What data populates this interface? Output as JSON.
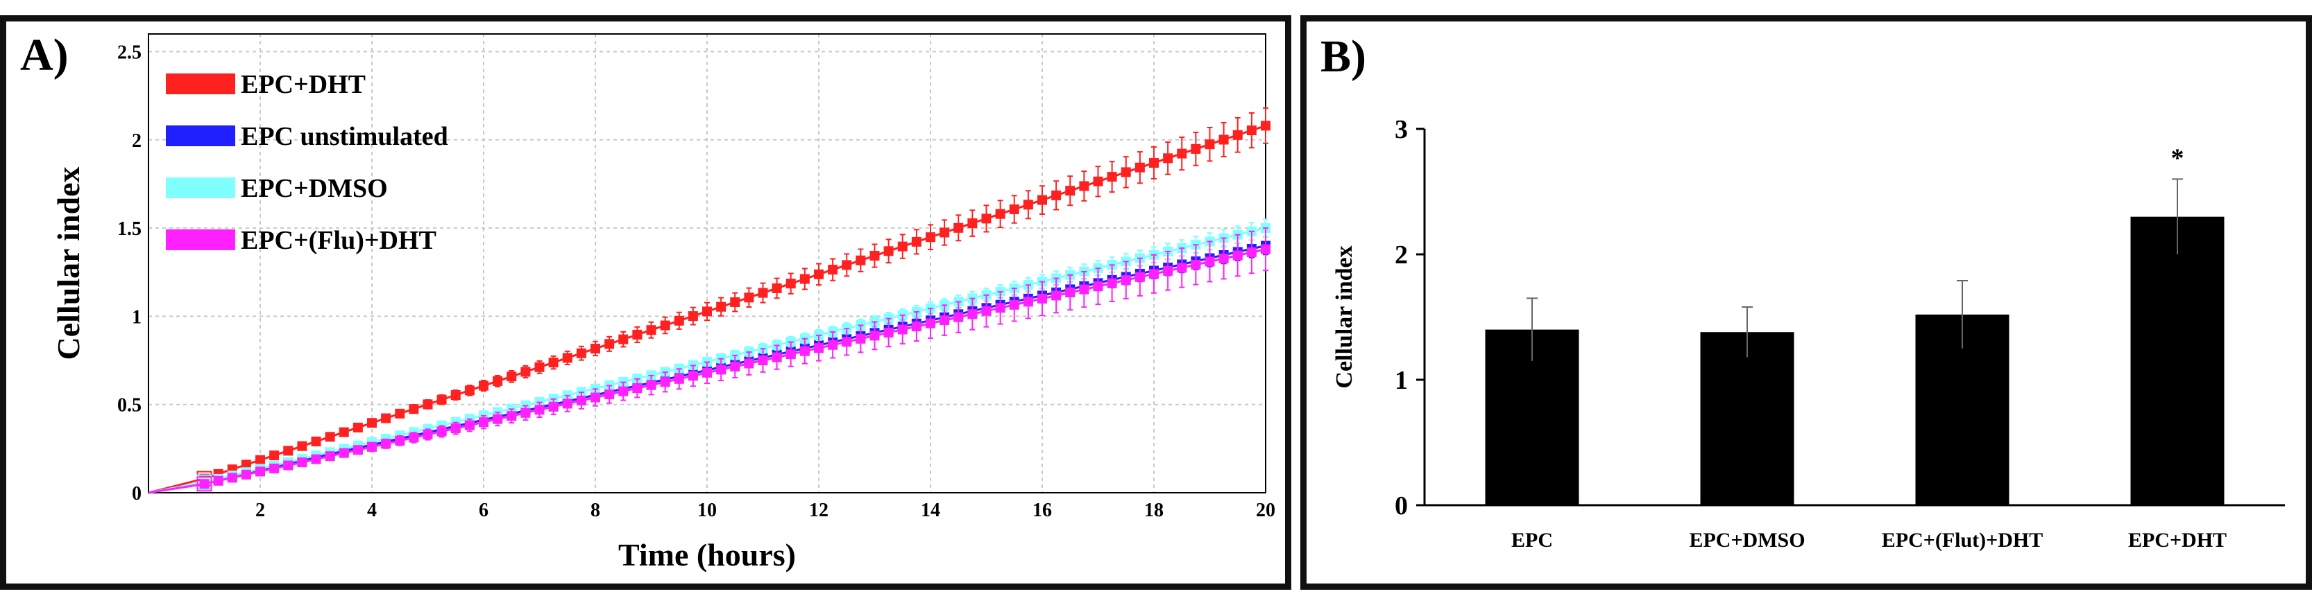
{
  "chart_data": [
    {
      "type": "line",
      "panel_label": "A)",
      "title": "",
      "xlabel": "Time (hours)",
      "ylabel": "Cellular index",
      "xlim": [
        0,
        20
      ],
      "ylim": [
        0,
        2.6
      ],
      "xticks": [
        2,
        4,
        6,
        8,
        10,
        12,
        14,
        16,
        18,
        20
      ],
      "ytick_labels": [
        "0",
        "0.5",
        "1",
        "1.5",
        "2",
        "2.5"
      ],
      "ytick_values": [
        0,
        0.5,
        1,
        1.5,
        2,
        2.5
      ],
      "grid": true,
      "legend": "top-left",
      "series": [
        {
          "name": "EPC+DHT",
          "color": "#ff2020",
          "start": [
            0,
            0
          ],
          "knee": [
            1,
            0.08
          ],
          "end": [
            20,
            2.08
          ],
          "error": 0.1
        },
        {
          "name": "EPC unstimulated",
          "color": "#2020ff",
          "start": [
            0,
            0
          ],
          "knee": [
            1,
            0.06
          ],
          "end": [
            20,
            1.4
          ],
          "error": 0.05
        },
        {
          "name": "EPC+DMSO",
          "color": "#80ffff",
          "start": [
            0,
            0
          ],
          "knee": [
            1,
            0.06
          ],
          "end": [
            20,
            1.5
          ],
          "error": 0.05
        },
        {
          "name": "EPC+(Flu)+DHT",
          "color": "#ff20ff",
          "start": [
            0,
            0
          ],
          "knee": [
            1,
            0.05
          ],
          "end": [
            20,
            1.38
          ],
          "error": 0.12
        }
      ]
    },
    {
      "type": "bar",
      "panel_label": "B)",
      "title": "",
      "xlabel": "",
      "ylabel": "Cellular index",
      "ylim": [
        0,
        3
      ],
      "ytick_labels": [
        "0",
        "1",
        "2",
        "3"
      ],
      "ytick_values": [
        0,
        1,
        2,
        3
      ],
      "categories": [
        "EPC",
        "EPC+DMSO",
        "EPC+(Flut)+DHT",
        "EPC+DHT"
      ],
      "values": [
        1.4,
        1.38,
        1.52,
        2.3
      ],
      "errors": [
        0.25,
        0.2,
        0.27,
        0.3
      ],
      "annotations": [
        "",
        "",
        "",
        "*"
      ],
      "bar_color": "#000000"
    }
  ]
}
